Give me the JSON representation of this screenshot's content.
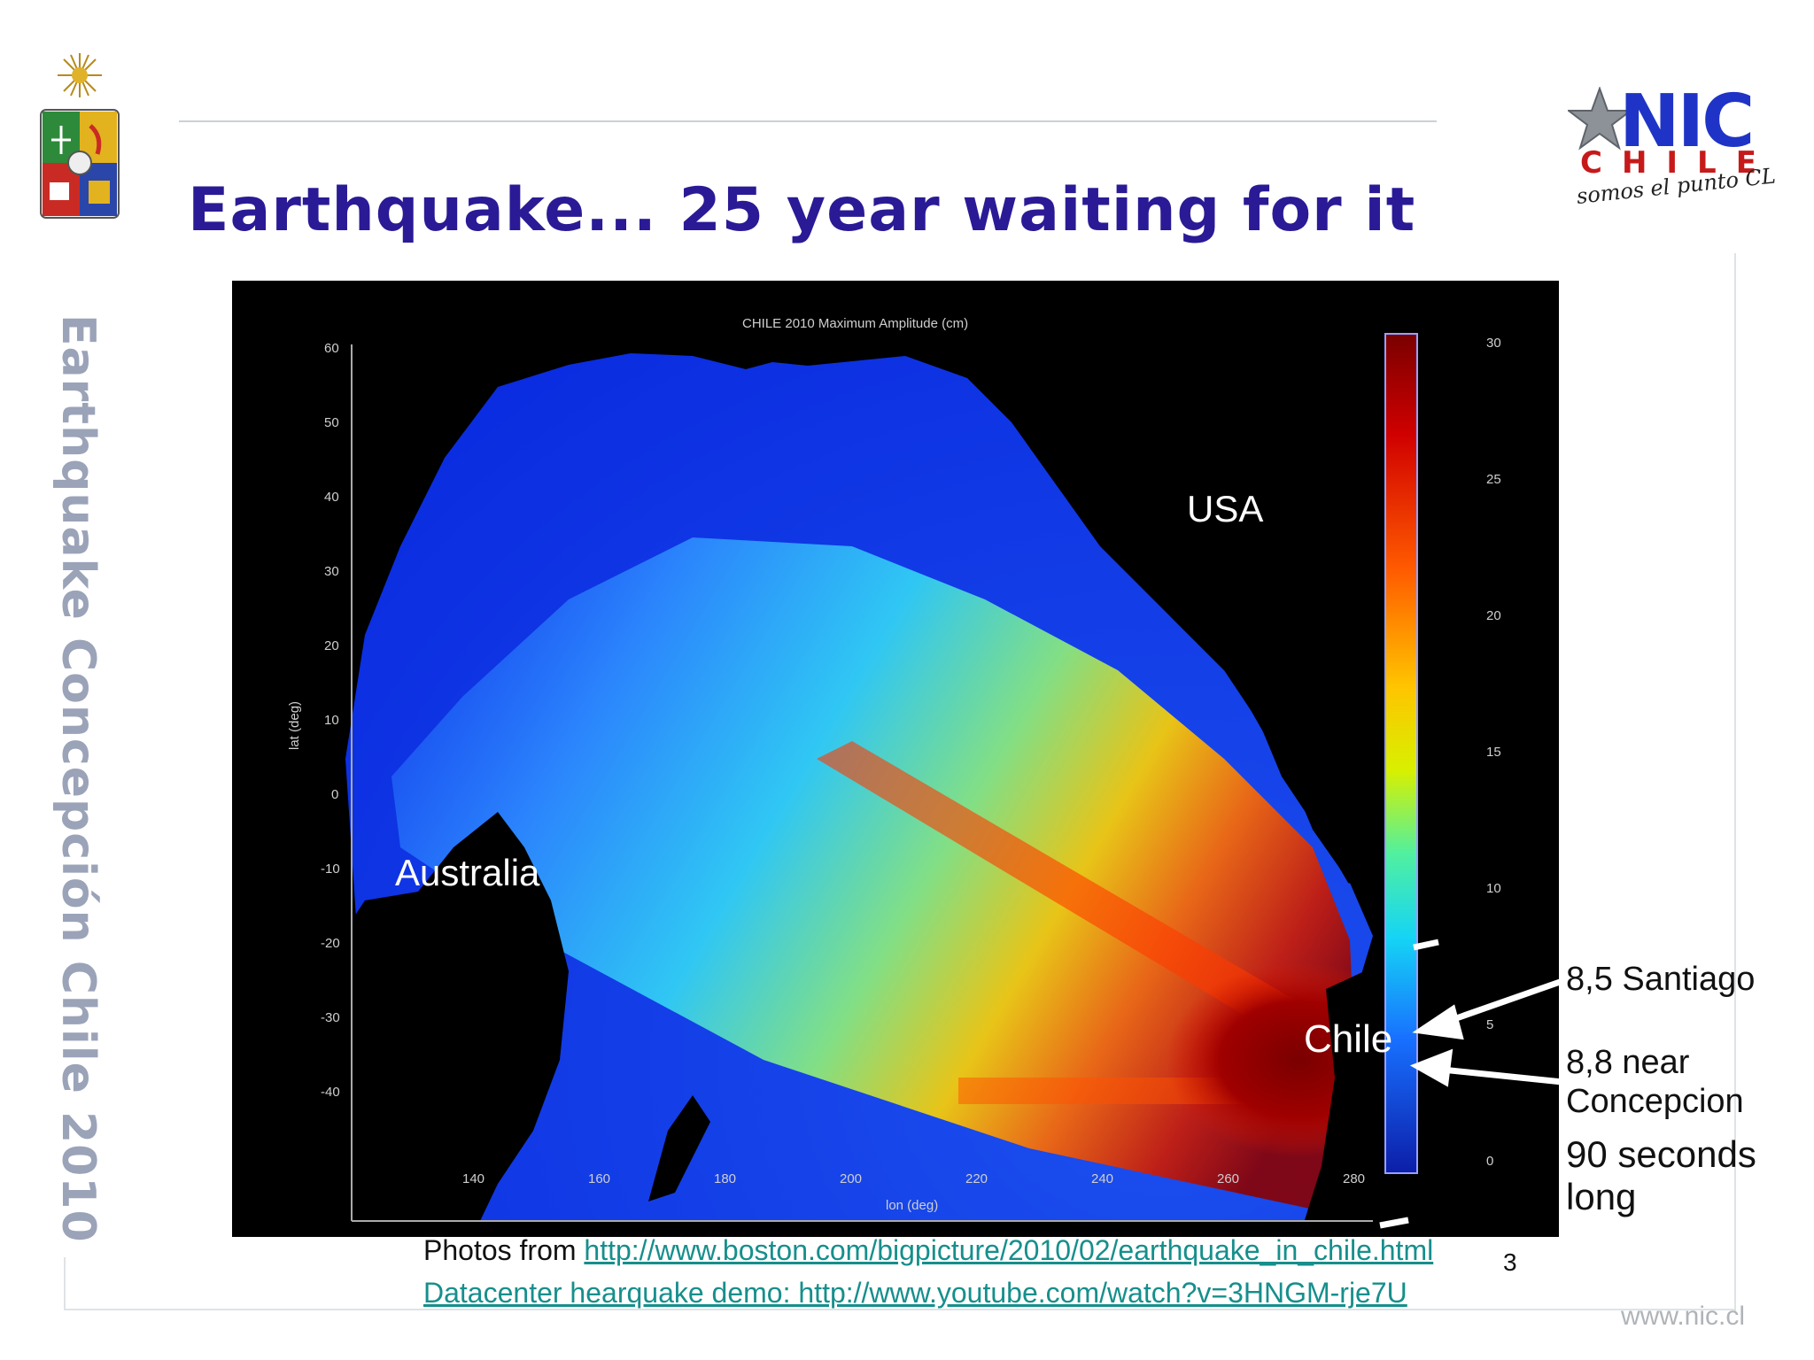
{
  "slide": {
    "title": "Earthquake... 25 year waiting for it",
    "side_label": "Earthquake Concepción Chile 2010",
    "page_number": "3",
    "site_url": "www.nic.cl"
  },
  "logo": {
    "nic": "NIC",
    "chile": "CHILE",
    "slogan": "somos el punto CL"
  },
  "map": {
    "title": "CHILE 2010    Maximum Amplitude (cm)",
    "lat_label": "lat (deg)",
    "lon_label": "lon (deg)",
    "lat_ticks": [
      "60",
      "50",
      "40",
      "30",
      "20",
      "10",
      "0",
      "-10",
      "-20",
      "-30",
      "-40"
    ],
    "lon_ticks": [
      "140",
      "160",
      "180",
      "200",
      "220",
      "240",
      "260",
      "280"
    ],
    "colorbar_ticks": [
      "30",
      "25",
      "20",
      "15",
      "10",
      "5",
      "0"
    ],
    "labels": {
      "usa": "USA",
      "australia": "Australia",
      "chile": "Chile"
    }
  },
  "annotations": {
    "santiago": "8,5 Santiago",
    "concepcion_1": "8,8 near",
    "concepcion_2": "Concepcion",
    "duration_1": "90 seconds",
    "duration_2": "long"
  },
  "footer": {
    "photos_prefix": "Photos from ",
    "photos_link": "http://www.boston.com/bigpicture/2010/02/earthquake_in_chile.html",
    "demo_link": "Datacenter hearquake demo: http://www.youtube.com/watch?v=3HNGM-rje7U"
  },
  "colors": {
    "title": "#2a1a96",
    "side_label": "#9aa3b8",
    "link": "#168f8c",
    "nic_blue": "#1f34c6",
    "nic_red": "#c61a1a"
  }
}
